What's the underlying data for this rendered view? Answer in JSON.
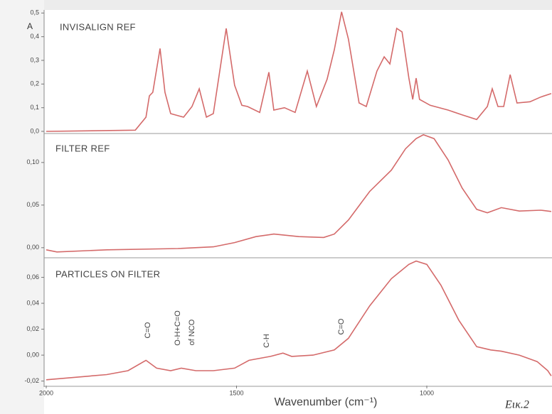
{
  "chart_data": [
    {
      "type": "line",
      "title": "INVISALIGN REF",
      "ylabel": "A",
      "color": "#d46a6a",
      "x": [
        2000,
        1766,
        1738,
        1729,
        1720,
        1701,
        1688,
        1673,
        1639,
        1617,
        1598,
        1579,
        1561,
        1527,
        1505,
        1486,
        1471,
        1439,
        1415,
        1402,
        1374,
        1346,
        1314,
        1290,
        1262,
        1243,
        1224,
        1206,
        1178,
        1159,
        1131,
        1112,
        1097,
        1079,
        1065,
        1047,
        1037,
        1028,
        1019,
        991,
        944,
        907,
        869,
        841,
        828,
        813,
        798,
        781,
        763,
        729,
        701,
        673
      ],
      "values": [
        0.0,
        0.005,
        0.06,
        0.15,
        0.165,
        0.35,
        0.165,
        0.075,
        0.06,
        0.105,
        0.18,
        0.06,
        0.075,
        0.435,
        0.195,
        0.11,
        0.105,
        0.08,
        0.25,
        0.09,
        0.1,
        0.08,
        0.255,
        0.105,
        0.22,
        0.345,
        0.505,
        0.39,
        0.12,
        0.105,
        0.255,
        0.315,
        0.285,
        0.435,
        0.42,
        0.225,
        0.135,
        0.225,
        0.135,
        0.11,
        0.09,
        0.07,
        0.05,
        0.105,
        0.18,
        0.105,
        0.105,
        0.24,
        0.12,
        0.125,
        0.145,
        0.16
      ],
      "xlim": [
        2000,
        671
      ],
      "ylim": [
        -0.006,
        0.51
      ],
      "yticks": [
        {
          "value": 0.0,
          "label": "0,0"
        },
        {
          "value": 0.1,
          "label": "0,1"
        },
        {
          "value": 0.2,
          "label": "0,2"
        },
        {
          "value": 0.3,
          "label": "0,3"
        },
        {
          "value": 0.4,
          "label": "0,4"
        },
        {
          "value": 0.5,
          "label": "0,5"
        }
      ]
    },
    {
      "type": "line",
      "title": "FILTER REF",
      "color": "#d46a6a",
      "x": [
        2000,
        1972,
        1841,
        1654,
        1561,
        1505,
        1449,
        1402,
        1336,
        1271,
        1243,
        1206,
        1150,
        1093,
        1056,
        1028,
        1009,
        981,
        944,
        907,
        869,
        841,
        804,
        757,
        701,
        673
      ],
      "values": [
        -0.0025,
        -0.005,
        -0.0025,
        -0.001,
        0.001,
        0.006,
        0.013,
        0.016,
        0.013,
        0.012,
        0.016,
        0.0325,
        0.066,
        0.091,
        0.116,
        0.128,
        0.1325,
        0.128,
        0.103,
        0.07,
        0.045,
        0.041,
        0.047,
        0.043,
        0.044,
        0.0425
      ],
      "xlim": [
        2000,
        671
      ],
      "ylim": [
        -0.011,
        0.134
      ],
      "yticks": [
        {
          "value": 0.0,
          "label": "0,00"
        },
        {
          "value": 0.05,
          "label": "0,05"
        },
        {
          "value": 0.1,
          "label": "0,10"
        }
      ]
    },
    {
      "type": "line",
      "title": "PARTICLES ON FILTER",
      "color": "#d46a6a",
      "xlabel": "Wavenumber (cm⁻¹)",
      "annotations": [
        "C=O",
        "O-H+C=O",
        "of NCO",
        "C-H",
        "C=O"
      ],
      "x": [
        2000,
        1841,
        1785,
        1738,
        1710,
        1673,
        1645,
        1607,
        1561,
        1505,
        1467,
        1411,
        1378,
        1355,
        1299,
        1243,
        1206,
        1150,
        1093,
        1047,
        1028,
        1000,
        963,
        916,
        869,
        832,
        804,
        757,
        710,
        682,
        673
      ],
      "values": [
        -0.019,
        -0.015,
        -0.012,
        -0.004,
        -0.01,
        -0.012,
        -0.01,
        -0.012,
        -0.012,
        -0.01,
        -0.004,
        -0.001,
        0.0016,
        -0.001,
        0.0,
        0.004,
        0.013,
        0.038,
        0.059,
        0.07,
        0.0726,
        0.07,
        0.054,
        0.027,
        0.0065,
        0.004,
        0.003,
        0.0,
        -0.005,
        -0.012,
        -0.016
      ],
      "xlim": [
        2000,
        671
      ],
      "ylim": [
        -0.0235,
        0.074
      ],
      "xticks": [
        2000,
        1500,
        1000
      ],
      "yticks": [
        {
          "value": -0.02,
          "label": "-0,02"
        },
        {
          "value": 0.0,
          "label": "0,00"
        },
        {
          "value": 0.02,
          "label": "0,02"
        },
        {
          "value": 0.04,
          "label": "0,04"
        },
        {
          "value": 0.06,
          "label": "0,06"
        }
      ]
    }
  ],
  "caption": "Εικ.2"
}
